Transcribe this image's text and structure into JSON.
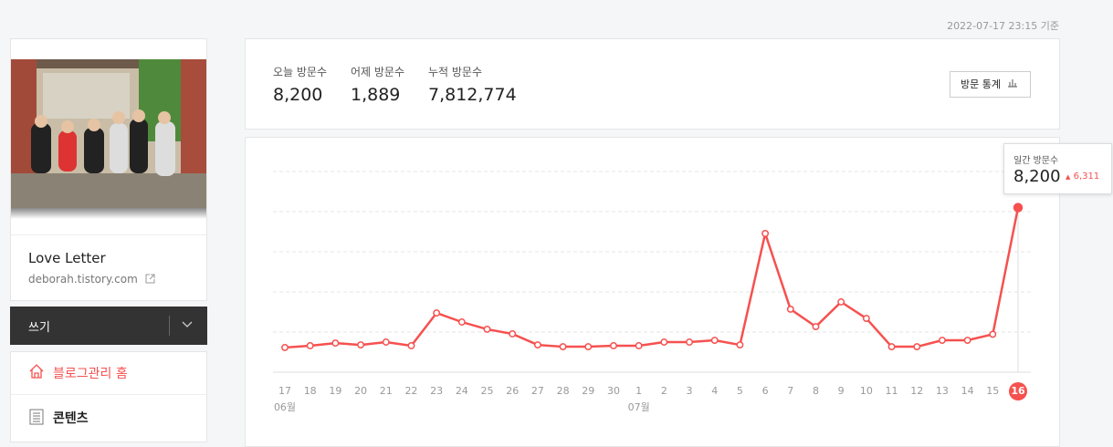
{
  "header": {
    "timestamp": "2022-07-17 23:15 기준"
  },
  "sidebar": {
    "blog_name": "Love Letter",
    "blog_url": "deborah.tistory.com",
    "write_button": "쓰기",
    "menu": [
      "블로그관리 홈",
      "콘텐츠"
    ]
  },
  "stats": {
    "items": [
      {
        "label": "오늘 방문수",
        "value": "8,200"
      },
      {
        "label": "어제 방문수",
        "value": "1,889"
      },
      {
        "label": "누적 방문수",
        "value": "7,812,774"
      }
    ],
    "button": "방문 통계"
  },
  "chart_data": {
    "type": "line",
    "categories": [
      "17",
      "18",
      "19",
      "20",
      "21",
      "22",
      "23",
      "24",
      "25",
      "26",
      "27",
      "28",
      "29",
      "30",
      "1",
      "2",
      "3",
      "4",
      "5",
      "6",
      "7",
      "8",
      "9",
      "10",
      "11",
      "12",
      "13",
      "14",
      "15",
      "16"
    ],
    "category_groups": [
      "06월",
      null,
      null,
      null,
      null,
      null,
      null,
      null,
      null,
      null,
      null,
      null,
      null,
      null,
      "07월",
      null,
      null,
      null,
      null,
      null,
      null,
      null,
      null,
      null,
      null,
      null,
      null,
      null,
      null,
      null
    ],
    "series": [
      {
        "name": "일간 방문수",
        "color": "#f5514f",
        "values": [
          1230,
          1320,
          1450,
          1360,
          1500,
          1320,
          2950,
          2500,
          2140,
          1910,
          1360,
          1270,
          1270,
          1320,
          1320,
          1500,
          1500,
          1590,
          1360,
          6910,
          3140,
          2270,
          3500,
          2680,
          1270,
          1270,
          1590,
          1590,
          1889,
          8200
        ]
      }
    ],
    "ylim": [
      0,
      10000
    ],
    "yticks": [
      0,
      2000,
      4000,
      6000,
      8000,
      10000
    ],
    "grid": true,
    "tooltip": {
      "value_label": "8,200",
      "change": "6,311"
    }
  }
}
